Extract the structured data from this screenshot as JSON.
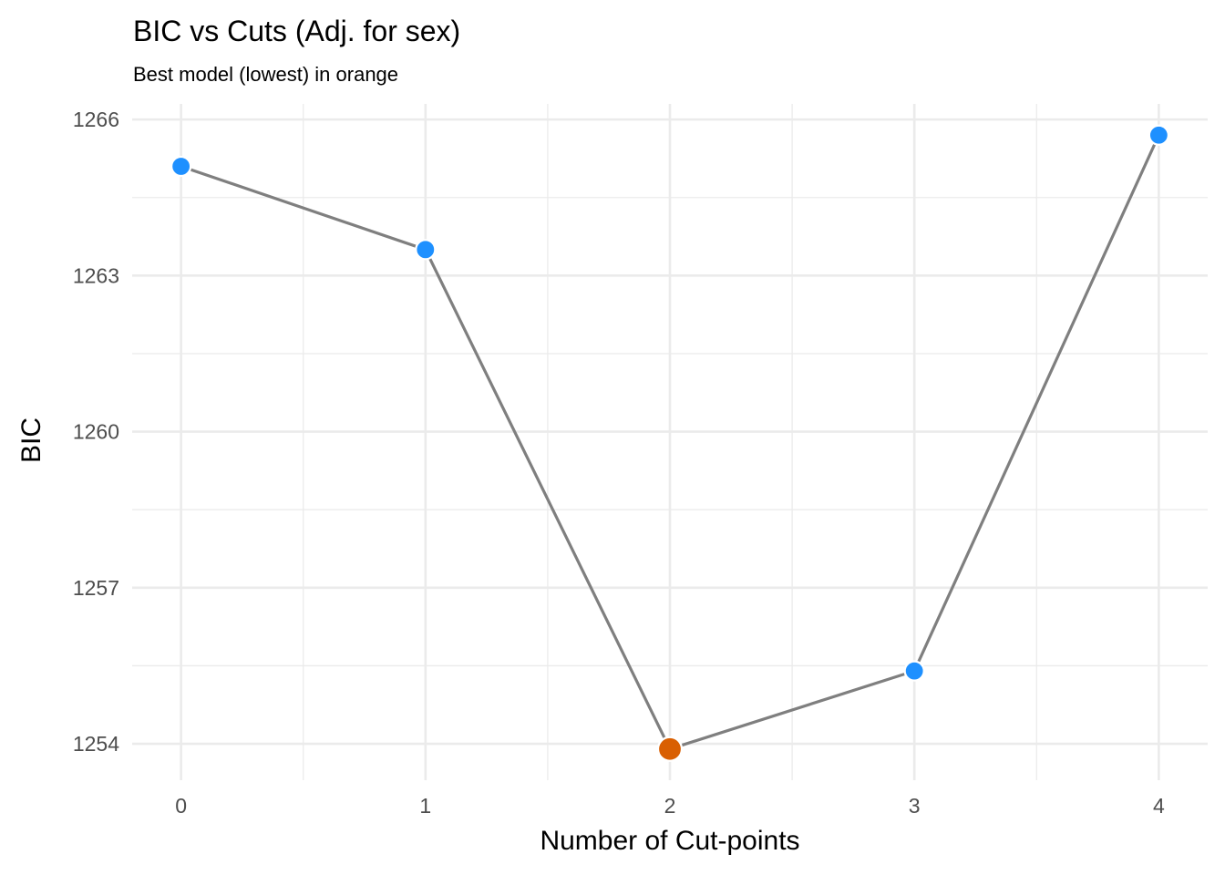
{
  "chart_data": {
    "type": "line",
    "title": "BIC vs Cuts (Adj. for sex)",
    "subtitle": "Best model (lowest) in orange",
    "xlabel": "Number of Cut-points",
    "ylabel": "BIC",
    "x": [
      0,
      1,
      2,
      3,
      4
    ],
    "values": [
      1265.1,
      1263.5,
      1253.9,
      1255.4,
      1265.7
    ],
    "best_index": 2,
    "xlim": [
      -0.2,
      4.2
    ],
    "ylim": [
      1253.3,
      1266.3
    ],
    "x_ticks": [
      0,
      1,
      2,
      3,
      4
    ],
    "y_ticks": [
      1254,
      1257,
      1260,
      1263,
      1266
    ],
    "x_minor_ticks": [
      0.5,
      1.5,
      2.5,
      3.5
    ],
    "y_minor_ticks": [
      1255.5,
      1258.5,
      1261.5,
      1264.5
    ],
    "grid": true,
    "legend": "none",
    "colors": {
      "line": "#7f7f7f",
      "point": "#1e90ff",
      "best_point": "#d95f02",
      "point_outline": "#ffffff"
    }
  }
}
